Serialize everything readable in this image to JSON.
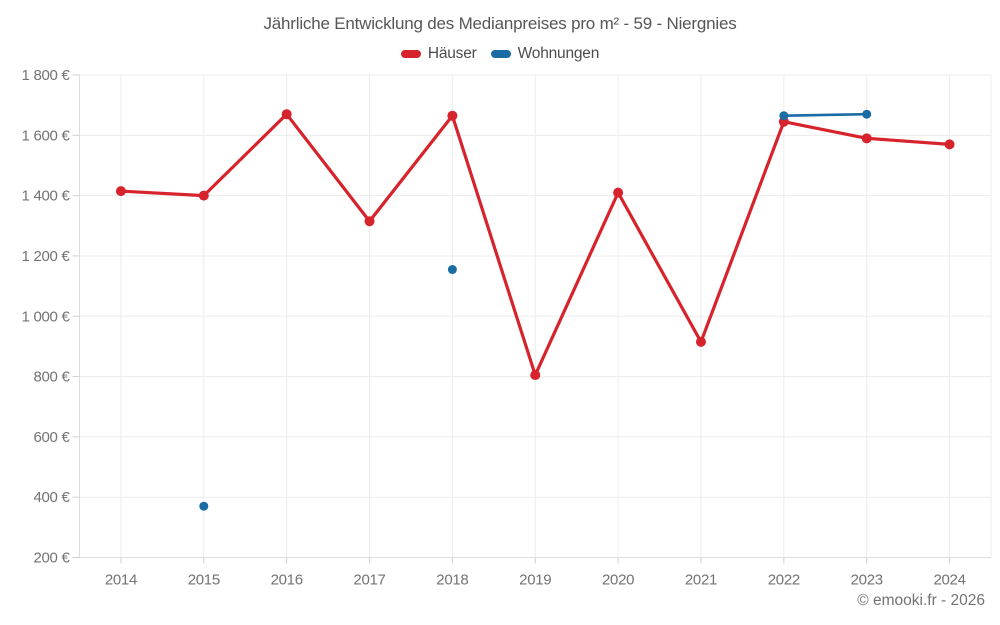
{
  "title": "Jährliche Entwicklung des Medianpreises pro m² - 59 - Niergnies",
  "copyright": "© emooki.fr - 2026",
  "chart_data": {
    "type": "line",
    "title": "Jährliche Entwicklung des Medianpreises pro m² - 59 - Niergnies",
    "x": [
      2014,
      2015,
      2016,
      2017,
      2018,
      2019,
      2020,
      2021,
      2022,
      2023,
      2024
    ],
    "series": [
      {
        "name": "Häuser",
        "color": "#d7232b",
        "values": [
          1415,
          1400,
          1670,
          1315,
          1665,
          805,
          1410,
          915,
          1645,
          1590,
          1570
        ]
      },
      {
        "name": "Wohnungen",
        "color": "#1b6ca5",
        "values": [
          null,
          370,
          null,
          null,
          1155,
          null,
          null,
          null,
          1665,
          1670,
          null
        ]
      }
    ],
    "xlabel": "",
    "ylabel": "",
    "y_suffix": " €",
    "ylim": [
      200,
      1800
    ],
    "ytick_step": 200,
    "grid": true,
    "legend_position": "top"
  }
}
